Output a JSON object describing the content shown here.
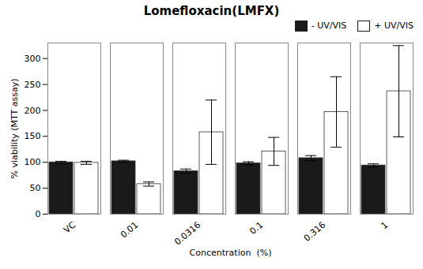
{
  "chart_data": {
    "type": "bar",
    "title": "Lomefloxacin(LMFX)",
    "xlabel": "Concentration  (%)",
    "ylabel": "% viability (MTT assay)",
    "categories": [
      "VC",
      "0.01",
      "0.0316",
      "0.1",
      "0.316",
      "1"
    ],
    "series": [
      {
        "name": "- UV/VIS",
        "color": "#1a1a1a",
        "values": [
          100,
          102,
          83,
          98,
          108,
          94
        ],
        "errors": [
          2,
          2,
          4,
          3,
          5,
          3
        ]
      },
      {
        "name": "+ UV/VIS",
        "color": "#ffffff",
        "values": [
          99,
          58,
          158,
          121,
          197,
          237
        ],
        "errors": [
          3,
          4,
          62,
          27,
          68,
          88
        ]
      }
    ],
    "ylim": [
      0,
      330
    ],
    "yticks": [
      0,
      50,
      100,
      150,
      200,
      250,
      300
    ],
    "grid": false,
    "legend": "upper right"
  }
}
